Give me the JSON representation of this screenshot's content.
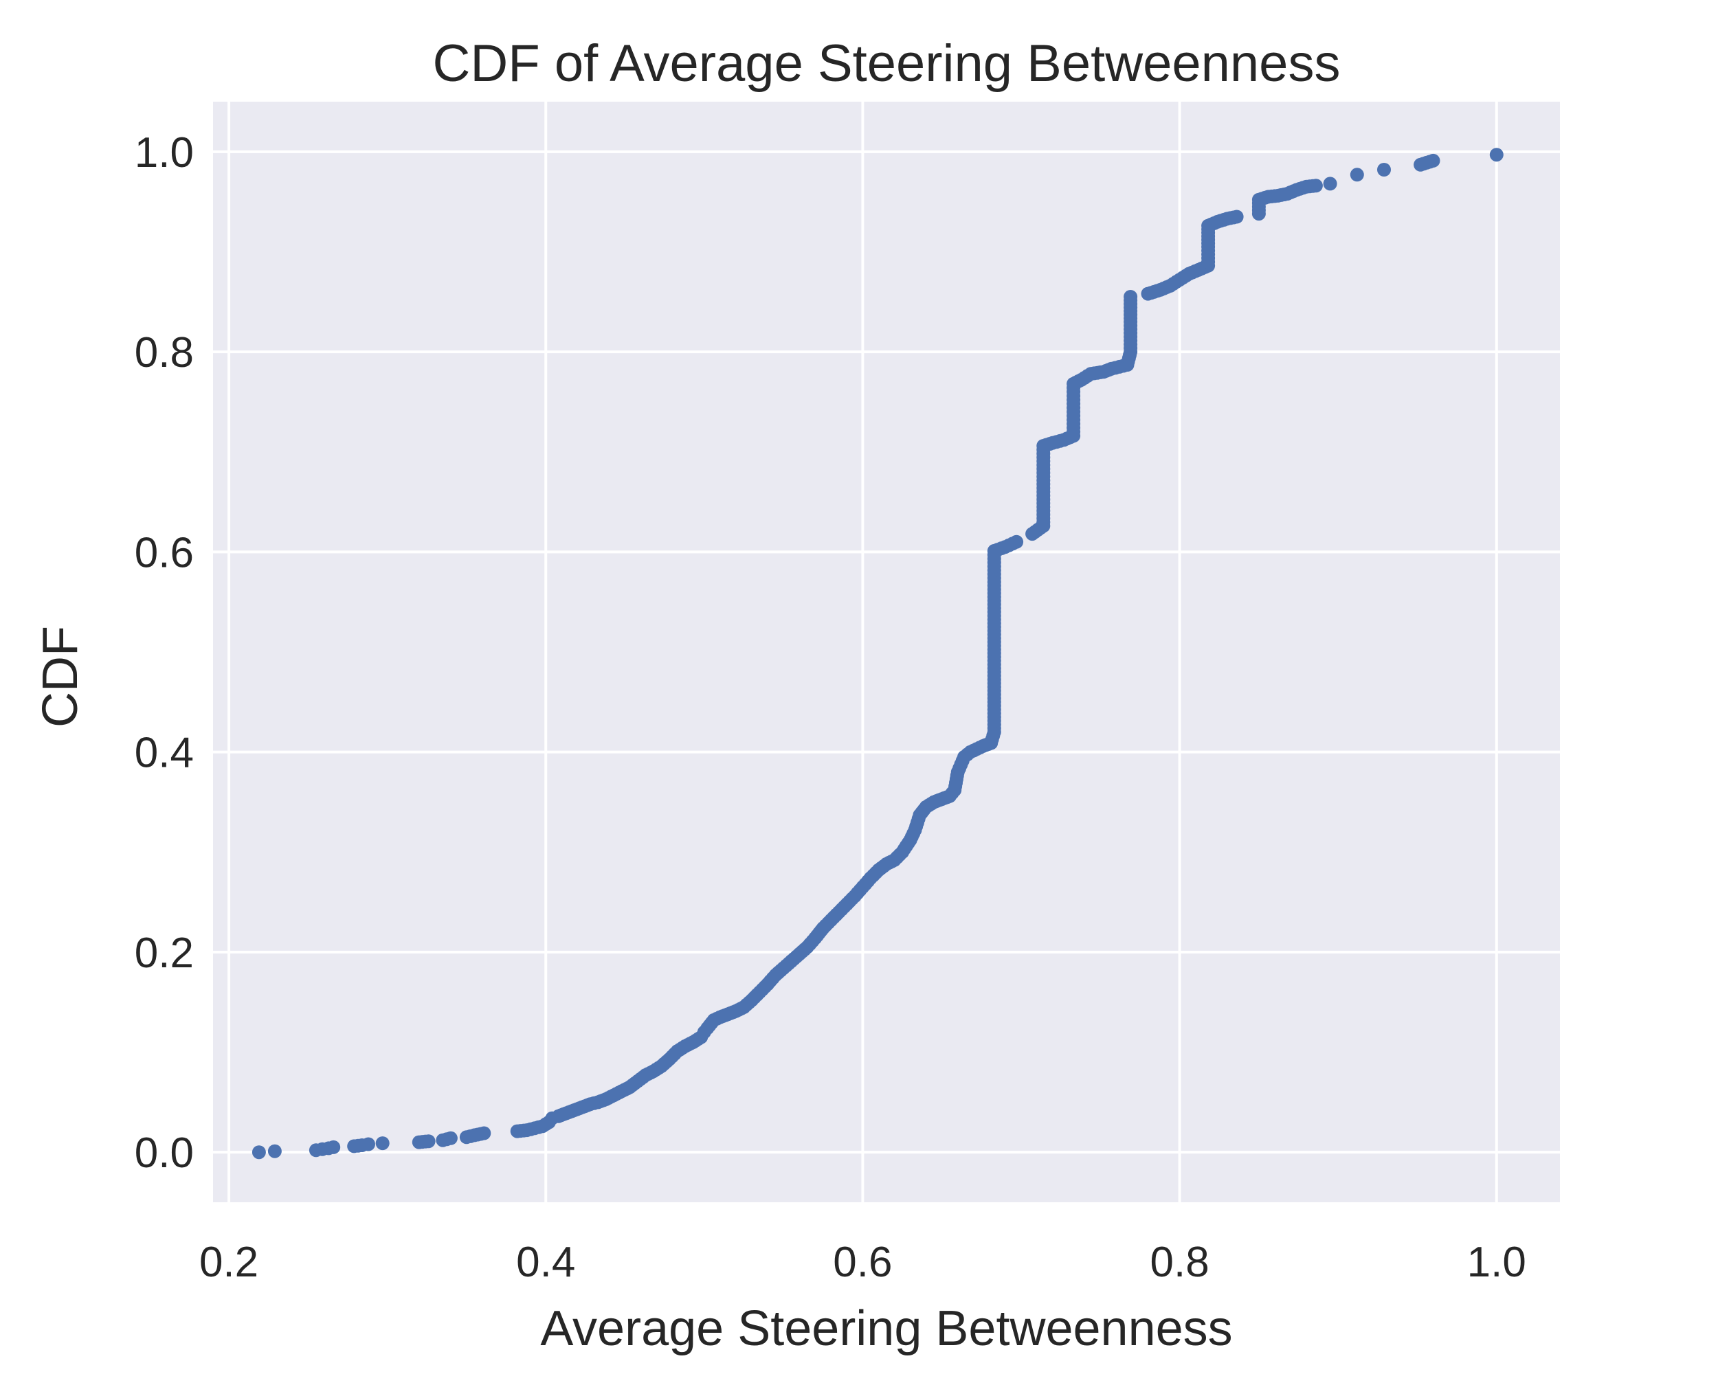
{
  "chart_data": {
    "type": "scatter",
    "title": "CDF of Average Steering Betweenness",
    "xlabel": "Average Steering Betweenness",
    "ylabel": "CDF",
    "xlim": [
      0.19,
      1.04
    ],
    "ylim": [
      -0.05,
      1.05
    ],
    "xticks": [
      0.2,
      0.4,
      0.6,
      0.8,
      1.0
    ],
    "xtick_labels": [
      "0.2",
      "0.4",
      "0.6",
      "0.8",
      "1.0"
    ],
    "yticks": [
      0.0,
      0.2,
      0.4,
      0.6,
      0.8,
      1.0
    ],
    "ytick_labels": [
      "0.0",
      "0.2",
      "0.4",
      "0.6",
      "0.8",
      "1.0"
    ],
    "grid": true,
    "colors": {
      "background": "#eaeaf2",
      "grid": "#ffffff",
      "series": "#4c72b0"
    },
    "series": [
      {
        "name": "CDF",
        "points": [
          [
            0.219,
            0.0
          ],
          [
            0.229,
            0.001
          ],
          [
            0.255,
            0.002
          ],
          [
            0.259,
            0.003
          ],
          [
            0.263,
            0.004
          ],
          [
            0.266,
            0.005
          ],
          [
            0.279,
            0.006
          ],
          [
            0.284,
            0.007
          ],
          [
            0.288,
            0.008
          ],
          [
            0.297,
            0.009
          ],
          [
            0.32,
            0.01
          ],
          [
            0.326,
            0.011
          ],
          [
            0.335,
            0.012
          ],
          [
            0.34,
            0.014
          ],
          [
            0.35,
            0.015
          ],
          [
            0.355,
            0.017
          ],
          [
            0.361,
            0.019
          ],
          [
            0.382,
            0.021
          ],
          [
            0.388,
            0.022
          ],
          [
            0.393,
            0.024
          ],
          [
            0.398,
            0.026
          ],
          [
            0.402,
            0.03
          ],
          [
            0.404,
            0.034
          ],
          [
            0.408,
            0.036
          ],
          [
            0.413,
            0.039
          ],
          [
            0.418,
            0.042
          ],
          [
            0.423,
            0.045
          ],
          [
            0.428,
            0.048
          ],
          [
            0.433,
            0.05
          ],
          [
            0.438,
            0.053
          ],
          [
            0.443,
            0.057
          ],
          [
            0.448,
            0.061
          ],
          [
            0.453,
            0.065
          ],
          [
            0.458,
            0.071
          ],
          [
            0.463,
            0.077
          ],
          [
            0.468,
            0.081
          ],
          [
            0.473,
            0.086
          ],
          [
            0.478,
            0.093
          ],
          [
            0.483,
            0.101
          ],
          [
            0.488,
            0.106
          ],
          [
            0.493,
            0.11
          ],
          [
            0.498,
            0.115
          ],
          [
            0.5,
            0.12
          ],
          [
            0.502,
            0.124
          ],
          [
            0.506,
            0.132
          ],
          [
            0.51,
            0.135
          ],
          [
            0.515,
            0.138
          ],
          [
            0.52,
            0.141
          ],
          [
            0.525,
            0.145
          ],
          [
            0.53,
            0.152
          ],
          [
            0.535,
            0.16
          ],
          [
            0.54,
            0.168
          ],
          [
            0.545,
            0.177
          ],
          [
            0.55,
            0.184
          ],
          [
            0.555,
            0.191
          ],
          [
            0.56,
            0.198
          ],
          [
            0.565,
            0.205
          ],
          [
            0.57,
            0.214
          ],
          [
            0.575,
            0.224
          ],
          [
            0.58,
            0.232
          ],
          [
            0.585,
            0.24
          ],
          [
            0.59,
            0.248
          ],
          [
            0.595,
            0.256
          ],
          [
            0.6,
            0.265
          ],
          [
            0.605,
            0.274
          ],
          [
            0.61,
            0.282
          ],
          [
            0.615,
            0.288
          ],
          [
            0.62,
            0.292
          ],
          [
            0.625,
            0.3
          ],
          [
            0.63,
            0.312
          ],
          [
            0.633,
            0.322
          ],
          [
            0.636,
            0.337
          ],
          [
            0.64,
            0.345
          ],
          [
            0.645,
            0.35
          ],
          [
            0.65,
            0.353
          ],
          [
            0.655,
            0.356
          ],
          [
            0.658,
            0.362
          ],
          [
            0.66,
            0.38
          ],
          [
            0.664,
            0.395
          ],
          [
            0.668,
            0.4
          ],
          [
            0.672,
            0.403
          ],
          [
            0.676,
            0.406
          ],
          [
            0.681,
            0.409
          ],
          [
            0.683,
            0.42
          ],
          [
            0.683,
            0.45
          ],
          [
            0.683,
            0.48
          ],
          [
            0.683,
            0.51
          ],
          [
            0.683,
            0.54
          ],
          [
            0.683,
            0.57
          ],
          [
            0.683,
            0.601
          ],
          [
            0.69,
            0.605
          ],
          [
            0.697,
            0.61
          ],
          [
            0.707,
            0.618
          ],
          [
            0.714,
            0.626
          ],
          [
            0.714,
            0.66
          ],
          [
            0.714,
            0.706
          ],
          [
            0.72,
            0.709
          ],
          [
            0.727,
            0.712
          ],
          [
            0.733,
            0.716
          ],
          [
            0.733,
            0.74
          ],
          [
            0.733,
            0.768
          ],
          [
            0.738,
            0.772
          ],
          [
            0.744,
            0.778
          ],
          [
            0.752,
            0.78
          ],
          [
            0.757,
            0.783
          ],
          [
            0.762,
            0.785
          ],
          [
            0.767,
            0.787
          ],
          [
            0.769,
            0.8
          ],
          [
            0.769,
            0.83
          ],
          [
            0.769,
            0.855
          ],
          [
            0.78,
            0.858
          ],
          [
            0.788,
            0.862
          ],
          [
            0.794,
            0.866
          ],
          [
            0.8,
            0.872
          ],
          [
            0.806,
            0.878
          ],
          [
            0.812,
            0.882
          ],
          [
            0.818,
            0.886
          ],
          [
            0.818,
            0.905
          ],
          [
            0.818,
            0.926
          ],
          [
            0.824,
            0.93
          ],
          [
            0.83,
            0.933
          ],
          [
            0.836,
            0.935
          ],
          [
            0.85,
            0.938
          ],
          [
            0.85,
            0.952
          ],
          [
            0.856,
            0.955
          ],
          [
            0.862,
            0.956
          ],
          [
            0.868,
            0.958
          ],
          [
            0.874,
            0.962
          ],
          [
            0.88,
            0.965
          ],
          [
            0.886,
            0.966
          ],
          [
            0.895,
            0.968
          ],
          [
            0.912,
            0.977
          ],
          [
            0.929,
            0.982
          ],
          [
            0.952,
            0.987
          ],
          [
            0.96,
            0.991
          ],
          [
            1.0,
            0.997
          ]
        ]
      }
    ]
  }
}
